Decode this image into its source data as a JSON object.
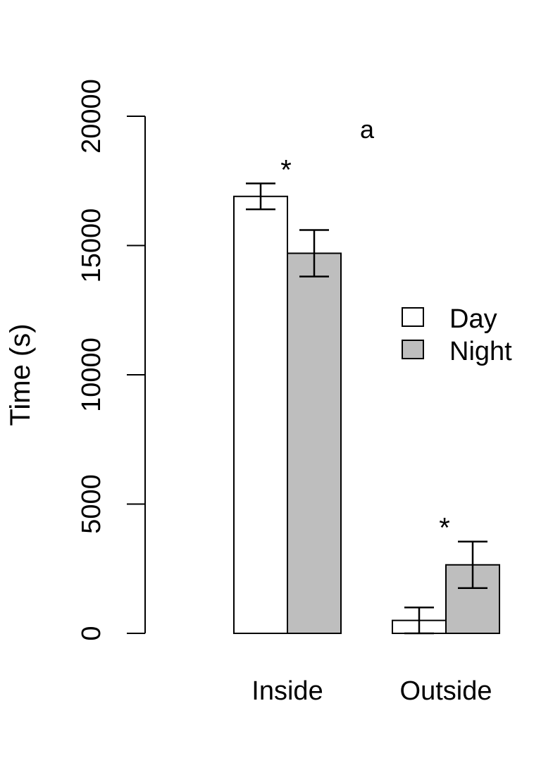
{
  "chart_data": {
    "type": "bar",
    "panel_label": "a",
    "categories": [
      "Inside",
      "Outside"
    ],
    "ylabel": "Time (s)",
    "xlabel": "",
    "ylim": [
      0,
      20000
    ],
    "yticks": [
      0,
      5000,
      10000,
      15000,
      20000
    ],
    "series": [
      {
        "name": "Day",
        "color": "#ffffff",
        "values": [
          16900,
          500
        ],
        "error_low": [
          16400,
          0
        ],
        "error_high": [
          17400,
          1000
        ]
      },
      {
        "name": "Night",
        "color": "#bebebe",
        "values": [
          14700,
          2650
        ],
        "error_low": [
          13800,
          1750
        ],
        "error_high": [
          15600,
          3550
        ]
      }
    ],
    "significance": [
      {
        "category": "Inside",
        "symbol": "*"
      },
      {
        "category": "Outside",
        "symbol": "*"
      }
    ],
    "legend_position": "right",
    "grid": false
  }
}
